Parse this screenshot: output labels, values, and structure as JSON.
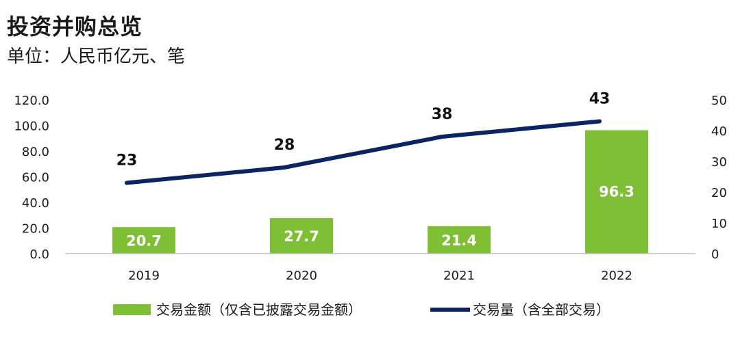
{
  "title": "投资并购总览",
  "subtitle": "单位：人民币亿元、笔",
  "colors": {
    "bar": "#7ebf36",
    "line": "#0c2461",
    "axis": "#bfbfbf"
  },
  "chart_data": {
    "type": "bar",
    "categories": [
      "2019",
      "2020",
      "2021",
      "2022"
    ],
    "series": [
      {
        "name": "交易金额（仅含已披露交易金额）",
        "type": "bar",
        "axis": "left",
        "values": [
          20.7,
          27.7,
          21.4,
          96.3
        ]
      },
      {
        "name": "交易量（含全部交易）",
        "type": "line",
        "axis": "right",
        "values": [
          23,
          28,
          38,
          43
        ]
      }
    ],
    "y_left": {
      "min": 0,
      "max": 120,
      "step": 20,
      "ticks": [
        "0.0",
        "20.0",
        "40.0",
        "60.0",
        "80.0",
        "100.0",
        "120.0"
      ]
    },
    "y_right": {
      "min": 0,
      "max": 50,
      "step": 10,
      "ticks": [
        "0",
        "10",
        "20",
        "30",
        "40",
        "50"
      ]
    },
    "bar_labels": [
      "20.7",
      "27.7",
      "21.4",
      "96.3"
    ],
    "line_labels": [
      "23",
      "28",
      "38",
      "43"
    ],
    "legend_position": "bottom",
    "grid": false
  }
}
